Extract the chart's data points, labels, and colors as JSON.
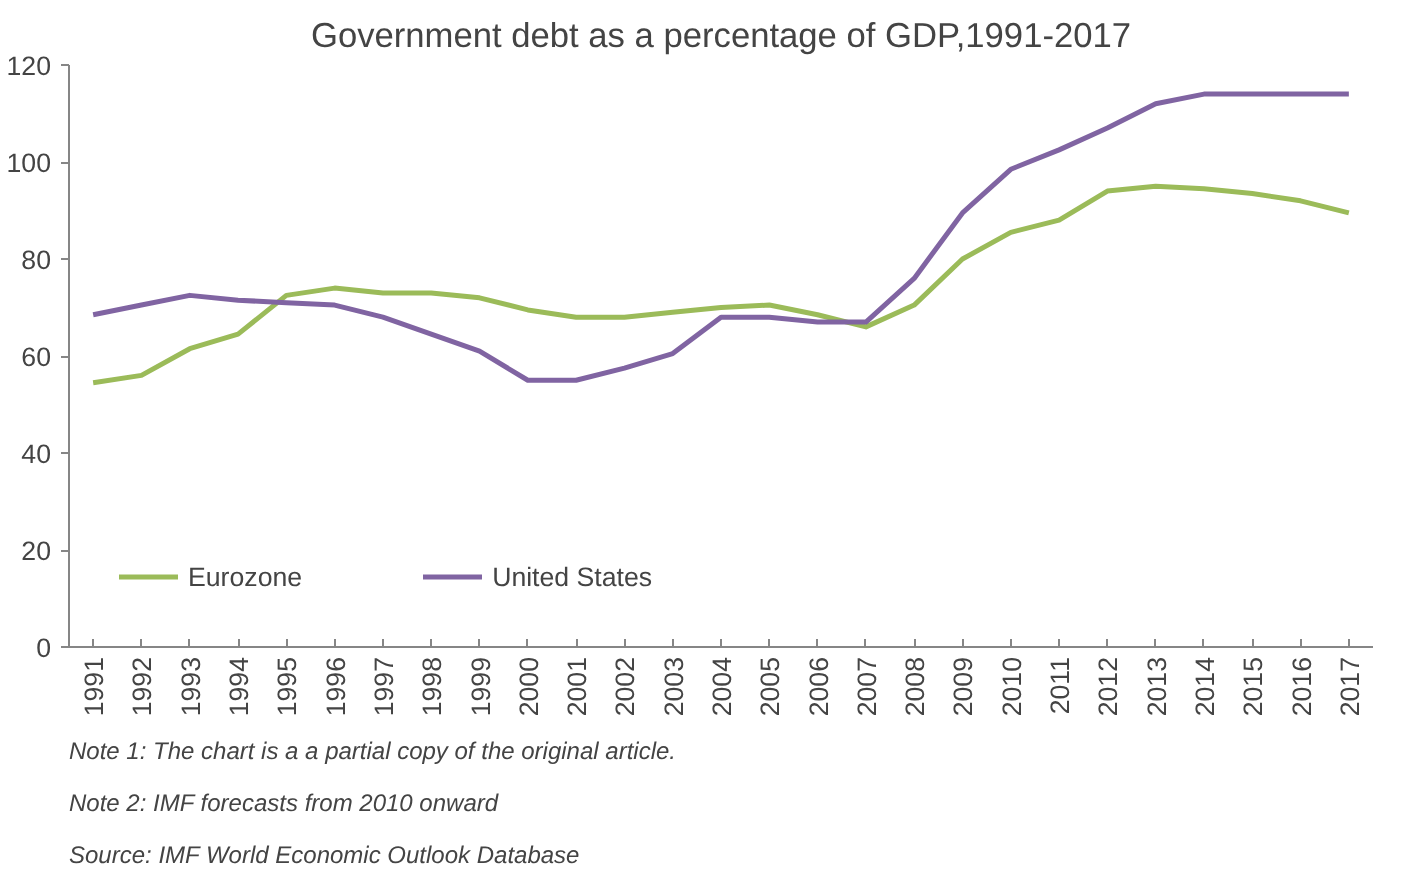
{
  "chart_data": {
    "type": "line",
    "title": "Government debt as a percentage of GDP,1991-2017",
    "categories": [
      "1991",
      "1992",
      "1993",
      "1994",
      "1995",
      "1996",
      "1997",
      "1998",
      "1999",
      "2000",
      "2001",
      "2002",
      "2003",
      "2004",
      "2005",
      "2006",
      "2007",
      "2008",
      "2009",
      "2010",
      "2011",
      "2012",
      "2013",
      "2014",
      "2015",
      "2016",
      "2017"
    ],
    "series": [
      {
        "name": "Eurozone",
        "color": "#9bbb59",
        "values": [
          54.5,
          56,
          61.5,
          64.5,
          72.5,
          74,
          73,
          73,
          72,
          69.5,
          68,
          68,
          69,
          70,
          70.5,
          68.5,
          66,
          70.5,
          80,
          85.5,
          88,
          94,
          95,
          94.5,
          93.5,
          92,
          89.5
        ]
      },
      {
        "name": "United States",
        "color": "#8064a2",
        "values": [
          68.5,
          70.5,
          72.5,
          71.5,
          71,
          70.5,
          68,
          64.5,
          61,
          55,
          55,
          57.5,
          60.5,
          68,
          68,
          67,
          67,
          76,
          89.5,
          98.5,
          102.5,
          107,
          112,
          114,
          114,
          114,
          114
        ]
      }
    ],
    "ylim": [
      0,
      120
    ],
    "yticks": [
      0,
      20,
      40,
      60,
      80,
      100,
      120
    ],
    "grid": false,
    "legend": "bottom left",
    "marker": "none",
    "line_style": "solid",
    "annotations": [
      "Note 1: The chart is a a partial copy of the original article.",
      "Note 2: IMF forecasts from 2010 onward",
      "Source: IMF World Economic Outlook Database"
    ]
  }
}
